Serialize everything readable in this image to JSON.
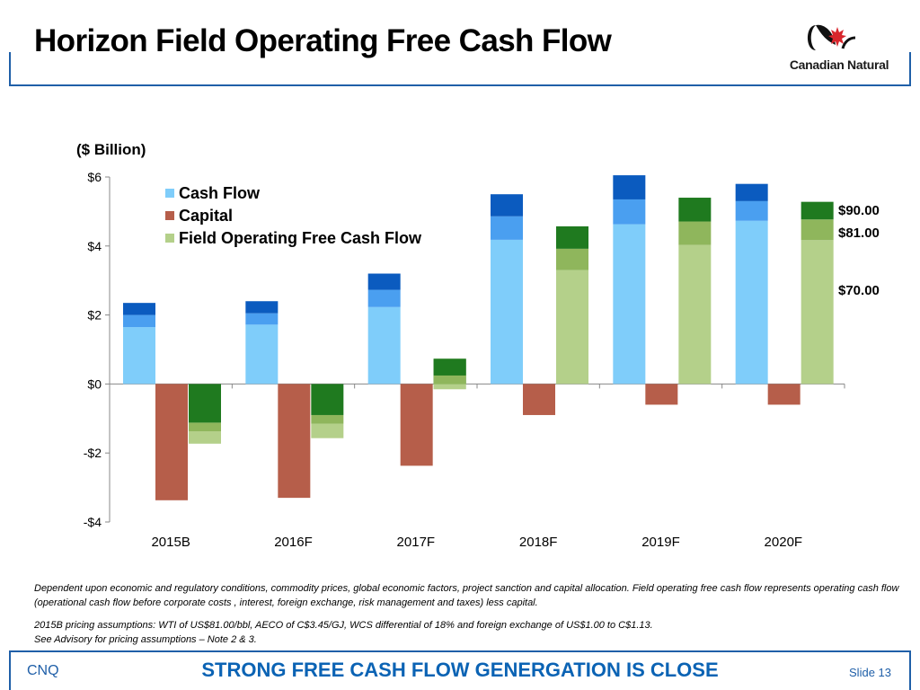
{
  "slide": {
    "title": "Horizon Field Operating Free Cash Flow",
    "logo_text": "Canadian Natural",
    "logo_icon": "canadian-natural-logo-icon",
    "footer_left": "CNQ",
    "footer_center": "STRONG FREE CASH FLOW GENERGATION IS CLOSE",
    "footer_right": "Slide 13",
    "footnote1": "Dependent upon economic and regulatory conditions, commodity prices, global economic factors, project sanction and capital allocation. Field operating free cash flow represents operating cash flow (operational cash flow before corporate costs , interest, foreign exchange, risk management and taxes) less capital.",
    "footnote2": "2015B pricing assumptions: WTI of US$81.00/bbl, AECO of C$3.45/GJ, WCS differential of 18% and foreign exchange of US$1.00 to C$1.13.",
    "footnote3": "See Advisory for pricing assumptions – Note 2 & 3."
  },
  "chart_data": {
    "type": "bar",
    "title": "",
    "ylabel": "($ Billion)",
    "xlabel": "",
    "ylim": [
      -4,
      6
    ],
    "yticks": [
      6,
      4,
      2,
      0,
      -2,
      -4
    ],
    "ytick_labels": [
      "$6",
      "$4",
      "$2",
      "$0",
      "-$2",
      "-$4"
    ],
    "categories": [
      "2015B",
      "2016F",
      "2017F",
      "2018F",
      "2019F",
      "2020F"
    ],
    "price_labels": [
      "$90.00",
      "$81.00",
      "$70.00"
    ],
    "legend": [
      "Cash Flow",
      "Capital",
      "Field Operating Free Cash Flow"
    ],
    "legend_position": "top-left",
    "colors": {
      "cash_flow": [
        "#7fcdfa",
        "#4a9ff0",
        "#0b5bbf"
      ],
      "capital": "#b65e4a",
      "fcf": [
        "#b4d08a",
        "#8fb65c",
        "#1f7a1f"
      ]
    },
    "series": [
      {
        "name": "Cash Flow",
        "values": [
          2.35,
          2.4,
          3.2,
          5.5,
          6.05,
          5.8
        ],
        "price_segments": [
          [
            1.65,
            0.35,
            0.35
          ],
          [
            1.72,
            0.33,
            0.35
          ],
          [
            2.23,
            0.5,
            0.47
          ],
          [
            4.18,
            0.68,
            0.64
          ],
          [
            4.63,
            0.72,
            0.7
          ],
          [
            4.73,
            0.57,
            0.5
          ]
        ]
      },
      {
        "name": "Capital",
        "values": [
          -3.37,
          -3.3,
          -2.37,
          -0.9,
          -0.6,
          -0.6
        ]
      },
      {
        "name": "Field Operating Free Cash Flow",
        "values": [
          -1.1,
          -0.9,
          0.73,
          4.57,
          5.4,
          5.28
        ],
        "price_segments": [
          [
            -1.73,
            -1.37,
            -1.12
          ],
          [
            -1.57,
            -1.15,
            -0.9
          ],
          [
            -0.15,
            0.25,
            0.73
          ],
          [
            3.3,
            3.92,
            4.57
          ],
          [
            4.03,
            4.71,
            5.4
          ],
          [
            4.17,
            4.77,
            5.28
          ]
        ]
      }
    ]
  }
}
